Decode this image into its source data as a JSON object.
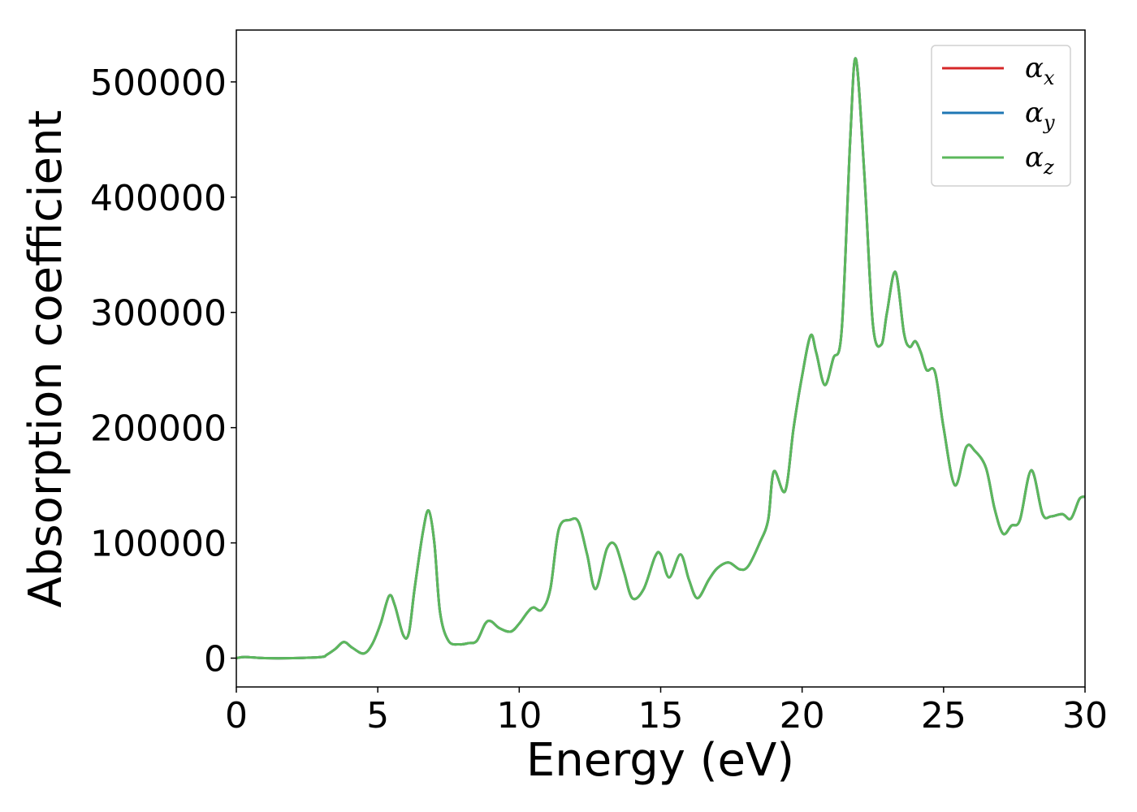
{
  "chart_data": {
    "type": "line",
    "title": "",
    "xlabel": "Energy (eV)",
    "ylabel": "Absorption coefficient",
    "xlim": [
      0,
      30
    ],
    "ylim": [
      -25000,
      545000
    ],
    "xticks": [
      0,
      5,
      10,
      15,
      20,
      25,
      30
    ],
    "xtick_labels": [
      "0",
      "5",
      "10",
      "15",
      "20",
      "25",
      "30"
    ],
    "yticks": [
      0,
      100000,
      200000,
      300000,
      400000,
      500000
    ],
    "ytick_labels": [
      "0",
      "100000",
      "200000",
      "300000",
      "400000",
      "500000"
    ],
    "grid": false,
    "legend_position": "top-right",
    "x": [
      0,
      0.3,
      1,
      2,
      3,
      3.2,
      3.5,
      3.8,
      4.1,
      4.5,
      4.8,
      5.1,
      5.4,
      5.6,
      5.9,
      6.1,
      6.3,
      6.6,
      6.8,
      7.0,
      7.2,
      7.5,
      7.9,
      8.2,
      8.5,
      8.8,
      9.0,
      9.3,
      9.7,
      10.0,
      10.3,
      10.5,
      10.8,
      11.1,
      11.4,
      11.8,
      12.1,
      12.4,
      12.7,
      13.1,
      13.4,
      13.7,
      14.0,
      14.4,
      14.8,
      15.0,
      15.3,
      15.7,
      16.0,
      16.3,
      16.7,
      17.0,
      17.4,
      17.8,
      18.1,
      18.5,
      18.8,
      19.0,
      19.4,
      19.7,
      20.0,
      20.3,
      20.5,
      20.8,
      21.1,
      21.4,
      21.7,
      21.9,
      22.2,
      22.5,
      22.8,
      23.0,
      23.3,
      23.6,
      23.8,
      24.0,
      24.2,
      24.4,
      24.7,
      25.0,
      25.4,
      25.8,
      26.1,
      26.5,
      26.8,
      27.1,
      27.4,
      27.7,
      28.1,
      28.5,
      28.8,
      29.2,
      29.5,
      29.8,
      30.0
    ],
    "series": [
      {
        "name": "αx",
        "color": "#d62728",
        "values": [
          0,
          1000,
          0,
          0,
          1000,
          3000,
          8000,
          14000,
          9000,
          4000,
          12000,
          30000,
          54000,
          46000,
          20000,
          22000,
          60000,
          110000,
          128000,
          100000,
          40000,
          15000,
          12000,
          13000,
          15000,
          30000,
          32000,
          26000,
          23000,
          30000,
          40000,
          44000,
          42000,
          60000,
          112000,
          120000,
          118000,
          90000,
          60000,
          95000,
          98000,
          75000,
          52000,
          60000,
          88000,
          90000,
          70000,
          90000,
          68000,
          52000,
          68000,
          78000,
          83000,
          77000,
          80000,
          100000,
          120000,
          162000,
          145000,
          200000,
          245000,
          280000,
          265000,
          237000,
          260000,
          285000,
          450000,
          520000,
          420000,
          290000,
          272000,
          300000,
          335000,
          282000,
          270000,
          275000,
          265000,
          250000,
          248000,
          200000,
          150000,
          183000,
          180000,
          165000,
          130000,
          108000,
          115000,
          120000,
          163000,
          125000,
          123000,
          125000,
          121000,
          138000,
          140000
        ]
      },
      {
        "name": "αy",
        "color": "#1f77b4",
        "values": [
          0,
          1000,
          0,
          0,
          1000,
          3000,
          8000,
          14000,
          9000,
          4000,
          12000,
          30000,
          54000,
          46000,
          20000,
          22000,
          60000,
          110000,
          128000,
          100000,
          40000,
          15000,
          12000,
          13000,
          15000,
          30000,
          32000,
          26000,
          23000,
          30000,
          40000,
          44000,
          42000,
          60000,
          112000,
          120000,
          118000,
          90000,
          60000,
          95000,
          98000,
          75000,
          52000,
          60000,
          88000,
          90000,
          70000,
          90000,
          68000,
          52000,
          68000,
          78000,
          83000,
          77000,
          80000,
          100000,
          120000,
          162000,
          145000,
          200000,
          245000,
          280000,
          265000,
          237000,
          260000,
          285000,
          450000,
          520000,
          420000,
          290000,
          272000,
          300000,
          335000,
          282000,
          270000,
          275000,
          265000,
          250000,
          248000,
          200000,
          150000,
          183000,
          180000,
          165000,
          130000,
          108000,
          115000,
          120000,
          163000,
          125000,
          123000,
          125000,
          121000,
          138000,
          140000
        ]
      },
      {
        "name": "αz",
        "color": "#5cb85c",
        "values": [
          0,
          1000,
          0,
          0,
          1000,
          3000,
          8000,
          14000,
          9000,
          4000,
          12000,
          30000,
          54000,
          46000,
          20000,
          22000,
          60000,
          110000,
          128000,
          100000,
          40000,
          15000,
          12000,
          13000,
          15000,
          30000,
          32000,
          26000,
          23000,
          30000,
          40000,
          44000,
          42000,
          60000,
          112000,
          120000,
          118000,
          90000,
          60000,
          95000,
          98000,
          75000,
          52000,
          60000,
          88000,
          90000,
          70000,
          90000,
          68000,
          52000,
          68000,
          78000,
          83000,
          77000,
          80000,
          100000,
          120000,
          162000,
          145000,
          200000,
          245000,
          280000,
          265000,
          237000,
          260000,
          285000,
          450000,
          520000,
          420000,
          290000,
          272000,
          300000,
          335000,
          282000,
          270000,
          275000,
          265000,
          250000,
          248000,
          200000,
          150000,
          183000,
          180000,
          165000,
          130000,
          108000,
          115000,
          120000,
          163000,
          125000,
          123000,
          125000,
          121000,
          138000,
          140000
        ]
      }
    ],
    "legend": [
      {
        "symbol": "α",
        "sub": "x",
        "color": "#d62728"
      },
      {
        "symbol": "α",
        "sub": "y",
        "color": "#1f77b4"
      },
      {
        "symbol": "α",
        "sub": "z",
        "color": "#5cb85c"
      }
    ]
  }
}
